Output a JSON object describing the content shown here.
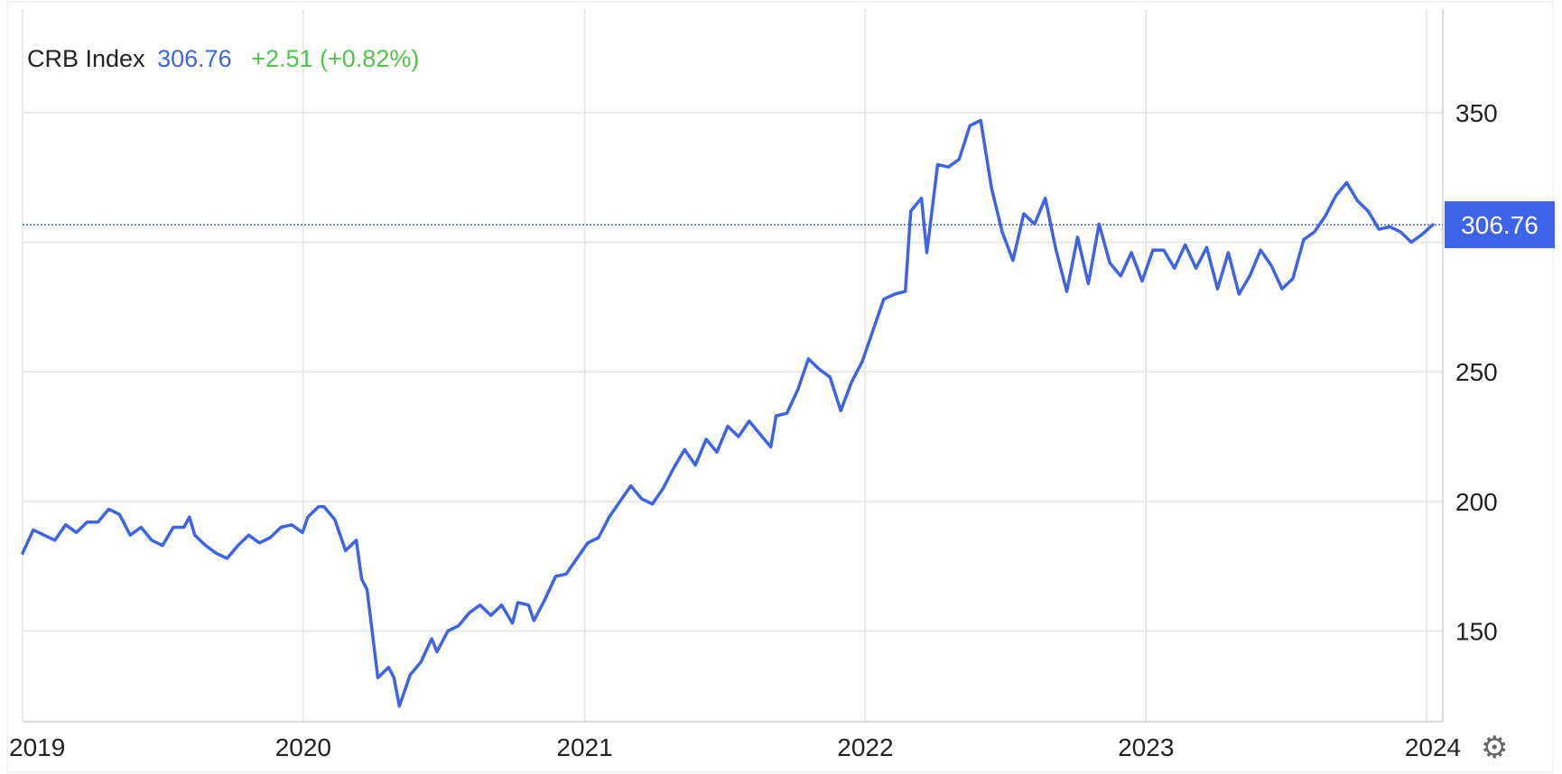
{
  "legend": {
    "name": "CRB Index",
    "last": "306.76",
    "change": "+2.51 (+0.82%)"
  },
  "settings_icon": "gear-icon",
  "colors": {
    "line": "#3d63e8",
    "up": "#4dc44a",
    "badge": "#3d63e8",
    "grid": "#e3e3e3"
  },
  "chart_data": {
    "type": "line",
    "title": "",
    "xlabel": "",
    "ylabel": "",
    "series_name": "CRB Index",
    "last_value": 306.76,
    "last_label": "306.76",
    "xlim": [
      "2019-01-01",
      "2024-01-22"
    ],
    "ylim": [
      115,
      390
    ],
    "x_ticks": [
      {
        "date": "2019-01-01",
        "label": "2019"
      },
      {
        "date": "2020-01-01",
        "label": "2020"
      },
      {
        "date": "2021-01-01",
        "label": "2021"
      },
      {
        "date": "2022-01-01",
        "label": "2022"
      },
      {
        "date": "2023-01-01",
        "label": "2023"
      },
      {
        "date": "2024-01-01",
        "label": "2024"
      }
    ],
    "y_ticks": [
      150,
      200,
      250,
      300,
      350
    ],
    "y_tick_labels_shown": [
      "150",
      "200",
      "250",
      "350"
    ],
    "grid": true,
    "points": [
      [
        "2019-01-01",
        180
      ],
      [
        "2019-01-15",
        189
      ],
      [
        "2019-01-29",
        187
      ],
      [
        "2019-02-12",
        185
      ],
      [
        "2019-02-26",
        191
      ],
      [
        "2019-03-12",
        188
      ],
      [
        "2019-03-26",
        192
      ],
      [
        "2019-04-09",
        192
      ],
      [
        "2019-04-23",
        197
      ],
      [
        "2019-05-07",
        195
      ],
      [
        "2019-05-21",
        187
      ],
      [
        "2019-06-04",
        190
      ],
      [
        "2019-06-18",
        185
      ],
      [
        "2019-07-02",
        183
      ],
      [
        "2019-07-16",
        190
      ],
      [
        "2019-07-30",
        190
      ],
      [
        "2019-08-06",
        194
      ],
      [
        "2019-08-13",
        187
      ],
      [
        "2019-08-27",
        183
      ],
      [
        "2019-09-10",
        180
      ],
      [
        "2019-09-24",
        178
      ],
      [
        "2019-10-08",
        183
      ],
      [
        "2019-10-22",
        187
      ],
      [
        "2019-11-05",
        184
      ],
      [
        "2019-11-19",
        186
      ],
      [
        "2019-12-03",
        190
      ],
      [
        "2019-12-17",
        191
      ],
      [
        "2019-12-31",
        188
      ],
      [
        "2020-01-07",
        194
      ],
      [
        "2020-01-21",
        198
      ],
      [
        "2020-01-28",
        198
      ],
      [
        "2020-02-11",
        193
      ],
      [
        "2020-02-25",
        181
      ],
      [
        "2020-03-10",
        185
      ],
      [
        "2020-03-17",
        170
      ],
      [
        "2020-03-24",
        166
      ],
      [
        "2020-04-07",
        132
      ],
      [
        "2020-04-21",
        136
      ],
      [
        "2020-04-28",
        132
      ],
      [
        "2020-05-05",
        121
      ],
      [
        "2020-05-19",
        133
      ],
      [
        "2020-06-02",
        138
      ],
      [
        "2020-06-16",
        147
      ],
      [
        "2020-06-23",
        142
      ],
      [
        "2020-07-07",
        150
      ],
      [
        "2020-07-21",
        152
      ],
      [
        "2020-08-04",
        157
      ],
      [
        "2020-08-18",
        160
      ],
      [
        "2020-09-01",
        156
      ],
      [
        "2020-09-15",
        160
      ],
      [
        "2020-09-29",
        153
      ],
      [
        "2020-10-06",
        161
      ],
      [
        "2020-10-20",
        160
      ],
      [
        "2020-10-27",
        154
      ],
      [
        "2020-11-10",
        162
      ],
      [
        "2020-11-24",
        171
      ],
      [
        "2020-12-08",
        172
      ],
      [
        "2020-12-22",
        178
      ],
      [
        "2021-01-05",
        184
      ],
      [
        "2021-01-19",
        186
      ],
      [
        "2021-02-02",
        194
      ],
      [
        "2021-02-16",
        200
      ],
      [
        "2021-03-02",
        206
      ],
      [
        "2021-03-16",
        201
      ],
      [
        "2021-03-30",
        199
      ],
      [
        "2021-04-13",
        205
      ],
      [
        "2021-04-27",
        213
      ],
      [
        "2021-05-11",
        220
      ],
      [
        "2021-05-25",
        214
      ],
      [
        "2021-06-08",
        224
      ],
      [
        "2021-06-22",
        219
      ],
      [
        "2021-07-06",
        229
      ],
      [
        "2021-07-20",
        225
      ],
      [
        "2021-08-03",
        231
      ],
      [
        "2021-08-17",
        226
      ],
      [
        "2021-08-31",
        221
      ],
      [
        "2021-09-07",
        233
      ],
      [
        "2021-09-21",
        234
      ],
      [
        "2021-10-05",
        243
      ],
      [
        "2021-10-19",
        255
      ],
      [
        "2021-11-02",
        251
      ],
      [
        "2021-11-16",
        248
      ],
      [
        "2021-11-30",
        235
      ],
      [
        "2021-12-14",
        246
      ],
      [
        "2021-12-28",
        254
      ],
      [
        "2022-01-11",
        266
      ],
      [
        "2022-01-25",
        278
      ],
      [
        "2022-02-08",
        280
      ],
      [
        "2022-02-22",
        281
      ],
      [
        "2022-03-01",
        312
      ],
      [
        "2022-03-15",
        317
      ],
      [
        "2022-03-22",
        296
      ],
      [
        "2022-04-05",
        330
      ],
      [
        "2022-04-19",
        329
      ],
      [
        "2022-05-03",
        332
      ],
      [
        "2022-05-17",
        345
      ],
      [
        "2022-05-31",
        347
      ],
      [
        "2022-06-14",
        321
      ],
      [
        "2022-06-28",
        304
      ],
      [
        "2022-07-12",
        293
      ],
      [
        "2022-07-26",
        311
      ],
      [
        "2022-08-09",
        307
      ],
      [
        "2022-08-23",
        317
      ],
      [
        "2022-09-06",
        297
      ],
      [
        "2022-09-20",
        281
      ],
      [
        "2022-10-04",
        302
      ],
      [
        "2022-10-18",
        284
      ],
      [
        "2022-11-01",
        307
      ],
      [
        "2022-11-15",
        292
      ],
      [
        "2022-11-29",
        287
      ],
      [
        "2022-12-13",
        296
      ],
      [
        "2022-12-27",
        285
      ],
      [
        "2023-01-10",
        297
      ],
      [
        "2023-01-24",
        297
      ],
      [
        "2023-02-07",
        290
      ],
      [
        "2023-02-21",
        299
      ],
      [
        "2023-03-07",
        290
      ],
      [
        "2023-03-21",
        298
      ],
      [
        "2023-04-04",
        282
      ],
      [
        "2023-04-18",
        296
      ],
      [
        "2023-05-02",
        280
      ],
      [
        "2023-05-16",
        287
      ],
      [
        "2023-05-30",
        297
      ],
      [
        "2023-06-13",
        291
      ],
      [
        "2023-06-27",
        282
      ],
      [
        "2023-07-11",
        286
      ],
      [
        "2023-07-25",
        301
      ],
      [
        "2023-08-08",
        304
      ],
      [
        "2023-08-22",
        310
      ],
      [
        "2023-09-05",
        318
      ],
      [
        "2023-09-19",
        323
      ],
      [
        "2023-10-03",
        316
      ],
      [
        "2023-10-17",
        312
      ],
      [
        "2023-10-31",
        305
      ],
      [
        "2023-11-14",
        306
      ],
      [
        "2023-11-28",
        304
      ],
      [
        "2023-12-12",
        300
      ],
      [
        "2023-12-26",
        303
      ],
      [
        "2024-01-09",
        306.76
      ]
    ]
  }
}
